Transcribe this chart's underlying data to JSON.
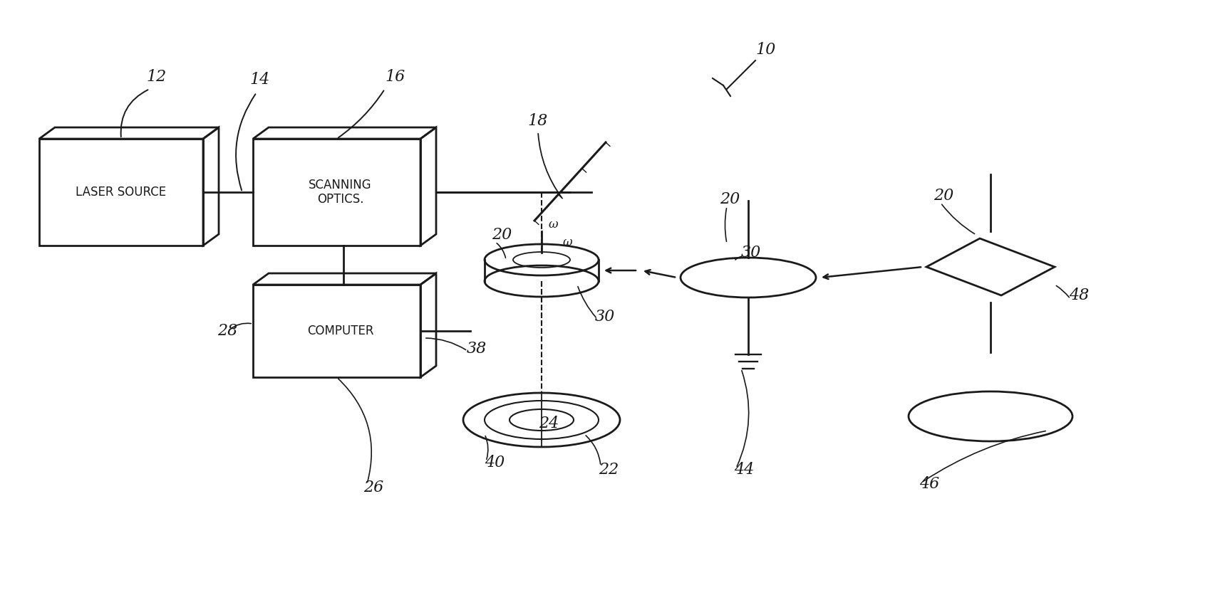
{
  "bg_color": "#ffffff",
  "ink_color": "#1a1a1a",
  "labels": {
    "laser_source": "LASER SOURCE",
    "scanning_optics": "SCANNING\nOPTICS.",
    "computer": "COMPUTER"
  }
}
